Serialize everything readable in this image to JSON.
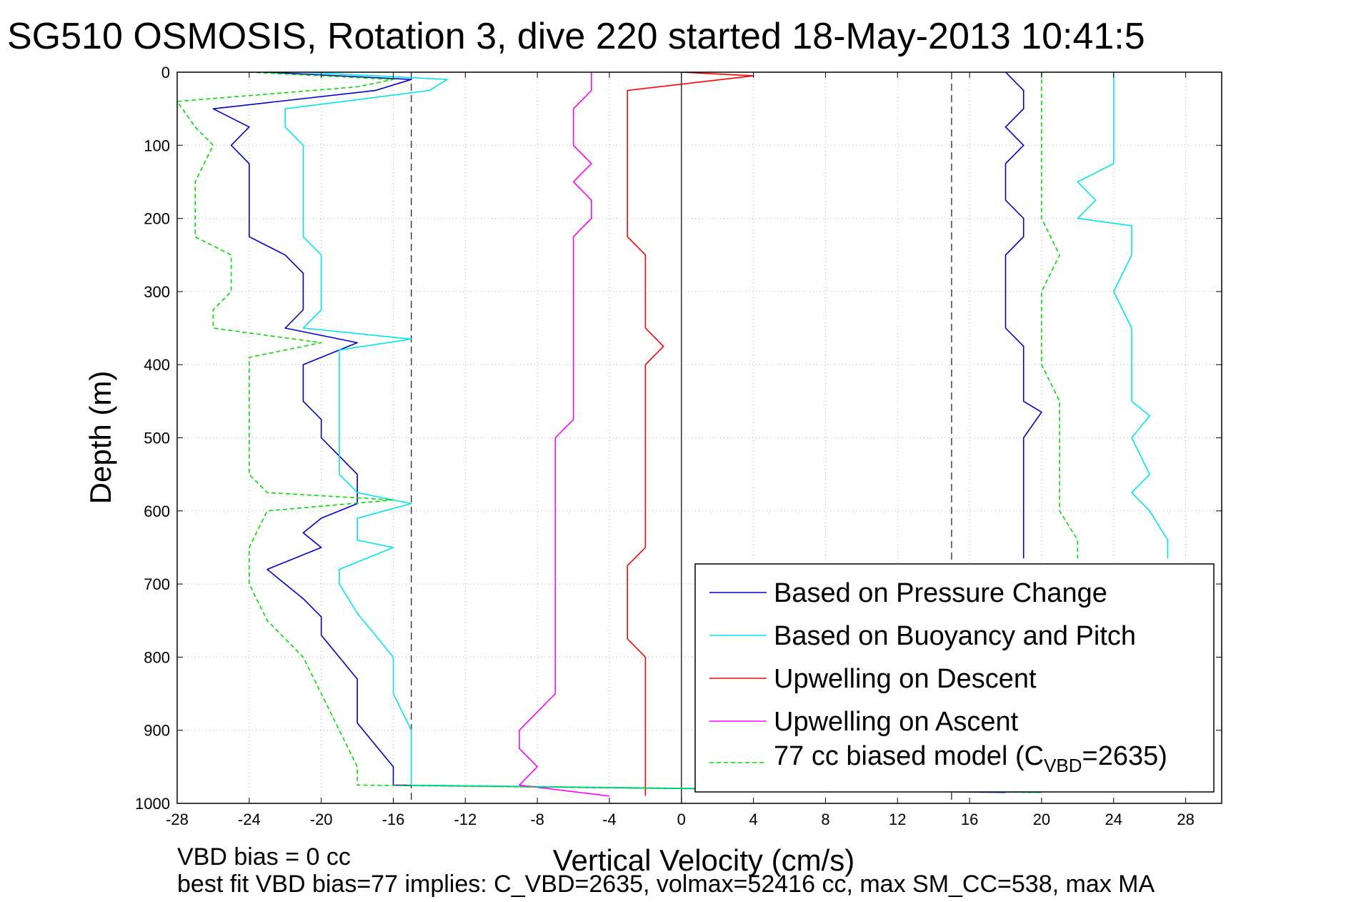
{
  "chart_data": {
    "type": "line",
    "title": "SG510 OSMOSIS, Rotation 3, dive 220 started 18-May-2013 10:41:5",
    "xlabel": "Vertical Velocity (cm/s)",
    "ylabel": "Depth (m)",
    "xlim": [
      -28,
      30
    ],
    "ylim": [
      1000,
      0
    ],
    "y_reversed": true,
    "xticks": [
      -28,
      -24,
      -20,
      -16,
      -12,
      -8,
      -4,
      0,
      4,
      8,
      12,
      16,
      20,
      24,
      28
    ],
    "yticks": [
      0,
      100,
      200,
      300,
      400,
      500,
      600,
      700,
      800,
      900,
      1000
    ],
    "grid": true,
    "legend_position": "bottom-right",
    "reference_lines": {
      "vertical_solid": [
        0
      ],
      "vertical_dashed": [
        -15,
        15
      ]
    },
    "notes": [
      "VBD bias = 0 cc",
      "best fit VBD bias=77 implies: C_VBD=2635, volmax=52416 cc, max SM_CC=538, max MA"
    ],
    "series": [
      {
        "name": "Based on Pressure Change",
        "color": "#0000cc",
        "style": "solid",
        "points": [
          [
            -23,
            0
          ],
          [
            -15,
            10
          ],
          [
            -17,
            25
          ],
          [
            -26,
            50
          ],
          [
            -24,
            75
          ],
          [
            -25,
            100
          ],
          [
            -24,
            125
          ],
          [
            -24,
            150
          ],
          [
            -24,
            175
          ],
          [
            -24,
            200
          ],
          [
            -24,
            225
          ],
          [
            -22,
            250
          ],
          [
            -21,
            275
          ],
          [
            -21,
            300
          ],
          [
            -21,
            325
          ],
          [
            -22,
            350
          ],
          [
            -18,
            370
          ],
          [
            -21,
            400
          ],
          [
            -21,
            425
          ],
          [
            -21,
            450
          ],
          [
            -20,
            475
          ],
          [
            -20,
            500
          ],
          [
            -19,
            525
          ],
          [
            -18,
            550
          ],
          [
            -18,
            575
          ],
          [
            -18,
            590
          ],
          [
            -20,
            610
          ],
          [
            -21,
            630
          ],
          [
            -20,
            650
          ],
          [
            -23,
            680
          ],
          [
            -22,
            700
          ],
          [
            -21,
            720
          ],
          [
            -20,
            745
          ],
          [
            -20,
            770
          ],
          [
            -19,
            800
          ],
          [
            -18,
            830
          ],
          [
            -18,
            860
          ],
          [
            -18,
            890
          ],
          [
            -17,
            920
          ],
          [
            -16,
            950
          ],
          [
            -16,
            975
          ],
          [
            18,
            985
          ]
        ],
        "ascent_points": [
          [
            18,
            0
          ],
          [
            19,
            25
          ],
          [
            19,
            50
          ],
          [
            18,
            75
          ],
          [
            19,
            100
          ],
          [
            18,
            125
          ],
          [
            18,
            150
          ],
          [
            18,
            175
          ],
          [
            19,
            200
          ],
          [
            19,
            225
          ],
          [
            18,
            250
          ],
          [
            18,
            275
          ],
          [
            18,
            300
          ],
          [
            18,
            325
          ],
          [
            18,
            350
          ],
          [
            19,
            375
          ],
          [
            19,
            400
          ],
          [
            19,
            425
          ],
          [
            19,
            450
          ],
          [
            20,
            465
          ],
          [
            19,
            500
          ],
          [
            19,
            550
          ],
          [
            19,
            600
          ],
          [
            19,
            650
          ],
          [
            19,
            665
          ]
        ]
      },
      {
        "name": "Based on Buoyancy and Pitch",
        "color": "#00e5ee",
        "style": "solid",
        "points": [
          [
            -21,
            0
          ],
          [
            -13,
            10
          ],
          [
            -14,
            25
          ],
          [
            -22,
            50
          ],
          [
            -22,
            75
          ],
          [
            -21,
            100
          ],
          [
            -21,
            125
          ],
          [
            -21,
            150
          ],
          [
            -21,
            175
          ],
          [
            -21,
            200
          ],
          [
            -21,
            225
          ],
          [
            -20,
            250
          ],
          [
            -20,
            275
          ],
          [
            -20,
            300
          ],
          [
            -20,
            325
          ],
          [
            -21,
            350
          ],
          [
            -15,
            365
          ],
          [
            -19,
            380
          ],
          [
            -19,
            400
          ],
          [
            -19,
            450
          ],
          [
            -19,
            500
          ],
          [
            -19,
            550
          ],
          [
            -18,
            575
          ],
          [
            -15,
            590
          ],
          [
            -18,
            610
          ],
          [
            -18,
            640
          ],
          [
            -16,
            650
          ],
          [
            -19,
            680
          ],
          [
            -19,
            700
          ],
          [
            -18,
            740
          ],
          [
            -17,
            770
          ],
          [
            -16,
            800
          ],
          [
            -16,
            850
          ],
          [
            -15,
            900
          ],
          [
            -15,
            950
          ],
          [
            -15,
            975
          ],
          [
            20,
            985
          ]
        ],
        "ascent_points": [
          [
            24,
            0
          ],
          [
            24,
            25
          ],
          [
            24,
            50
          ],
          [
            24,
            75
          ],
          [
            24,
            100
          ],
          [
            24,
            125
          ],
          [
            22,
            150
          ],
          [
            23,
            175
          ],
          [
            22,
            200
          ],
          [
            25,
            210
          ],
          [
            25,
            250
          ],
          [
            24,
            300
          ],
          [
            25,
            350
          ],
          [
            25,
            400
          ],
          [
            25,
            450
          ],
          [
            26,
            470
          ],
          [
            25,
            500
          ],
          [
            26,
            550
          ],
          [
            25,
            575
          ],
          [
            26,
            600
          ],
          [
            27,
            640
          ],
          [
            27,
            665
          ]
        ]
      },
      {
        "name": "Upwelling on Descent",
        "color": "#ff0000",
        "style": "solid",
        "points": [
          [
            0,
            0
          ],
          [
            4,
            5
          ],
          [
            -3,
            25
          ],
          [
            -3,
            50
          ],
          [
            -3,
            75
          ],
          [
            -3,
            100
          ],
          [
            -3,
            125
          ],
          [
            -3,
            150
          ],
          [
            -3,
            175
          ],
          [
            -3,
            200
          ],
          [
            -3,
            225
          ],
          [
            -2,
            250
          ],
          [
            -2,
            275
          ],
          [
            -2,
            300
          ],
          [
            -2,
            325
          ],
          [
            -2,
            350
          ],
          [
            -1,
            375
          ],
          [
            -2,
            400
          ],
          [
            -2,
            425
          ],
          [
            -2,
            450
          ],
          [
            -2,
            475
          ],
          [
            -2,
            500
          ],
          [
            -2,
            550
          ],
          [
            -2,
            600
          ],
          [
            -2,
            625
          ],
          [
            -2,
            650
          ],
          [
            -3,
            675
          ],
          [
            -3,
            700
          ],
          [
            -3,
            725
          ],
          [
            -3,
            750
          ],
          [
            -3,
            775
          ],
          [
            -2,
            800
          ],
          [
            -2,
            850
          ],
          [
            -2,
            900
          ],
          [
            -2,
            950
          ],
          [
            -2,
            975
          ],
          [
            -2,
            990
          ]
        ]
      },
      {
        "name": "Upwelling on Ascent",
        "color": "#ff00ff",
        "style": "solid",
        "points": [
          [
            -5,
            0
          ],
          [
            -5,
            25
          ],
          [
            -6,
            50
          ],
          [
            -6,
            75
          ],
          [
            -6,
            100
          ],
          [
            -5,
            125
          ],
          [
            -6,
            150
          ],
          [
            -5,
            175
          ],
          [
            -5,
            200
          ],
          [
            -6,
            225
          ],
          [
            -6,
            250
          ],
          [
            -6,
            275
          ],
          [
            -6,
            300
          ],
          [
            -6,
            325
          ],
          [
            -6,
            350
          ],
          [
            -6,
            375
          ],
          [
            -6,
            400
          ],
          [
            -6,
            425
          ],
          [
            -6,
            450
          ],
          [
            -6,
            475
          ],
          [
            -7,
            500
          ],
          [
            -7,
            525
          ],
          [
            -7,
            550
          ],
          [
            -7,
            575
          ],
          [
            -7,
            600
          ],
          [
            -7,
            625
          ],
          [
            -7,
            650
          ],
          [
            -7,
            675
          ],
          [
            -7,
            700
          ],
          [
            -7,
            725
          ],
          [
            -7,
            750
          ],
          [
            -7,
            775
          ],
          [
            -7,
            800
          ],
          [
            -7,
            825
          ],
          [
            -7,
            850
          ],
          [
            -8,
            875
          ],
          [
            -9,
            900
          ],
          [
            -9,
            925
          ],
          [
            -8,
            950
          ],
          [
            -9,
            975
          ],
          [
            -4,
            990
          ]
        ]
      },
      {
        "name": "77 cc biased model",
        "color": "#00dd00",
        "style": "dashed",
        "points": [
          [
            -24,
            0
          ],
          [
            -16,
            10
          ],
          [
            -18,
            20
          ],
          [
            -28,
            40
          ],
          [
            -27,
            75
          ],
          [
            -26,
            100
          ],
          [
            -27,
            150
          ],
          [
            -27,
            200
          ],
          [
            -27,
            225
          ],
          [
            -25,
            250
          ],
          [
            -25,
            275
          ],
          [
            -25,
            300
          ],
          [
            -26,
            325
          ],
          [
            -26,
            350
          ],
          [
            -20,
            370
          ],
          [
            -24,
            390
          ],
          [
            -24,
            450
          ],
          [
            -24,
            500
          ],
          [
            -24,
            550
          ],
          [
            -23,
            575
          ],
          [
            -16,
            585
          ],
          [
            -23,
            600
          ],
          [
            -24,
            650
          ],
          [
            -24,
            700
          ],
          [
            -23,
            750
          ],
          [
            -21,
            800
          ],
          [
            -20,
            850
          ],
          [
            -19,
            900
          ],
          [
            -18,
            950
          ],
          [
            -18,
            975
          ],
          [
            20,
            985
          ]
        ],
        "ascent_points": [
          [
            20,
            0
          ],
          [
            20,
            50
          ],
          [
            20,
            100
          ],
          [
            20,
            150
          ],
          [
            20,
            200
          ],
          [
            21,
            250
          ],
          [
            20,
            300
          ],
          [
            20,
            350
          ],
          [
            20,
            400
          ],
          [
            21,
            450
          ],
          [
            21,
            500
          ],
          [
            21,
            550
          ],
          [
            21,
            600
          ],
          [
            22,
            640
          ],
          [
            22,
            665
          ]
        ]
      }
    ]
  },
  "legend": {
    "items": [
      {
        "label": "Based on Pressure Change",
        "color": "#0000cc",
        "dashed": false
      },
      {
        "label": "Based on Buoyancy and Pitch",
        "color": "#00e5ee",
        "dashed": false
      },
      {
        "label": "Upwelling on Descent",
        "color": "#ff0000",
        "dashed": false
      },
      {
        "label": "Upwelling on Ascent",
        "color": "#ff00ff",
        "dashed": false
      }
    ],
    "model_item": {
      "color": "#00dd00",
      "prefix": "77 cc biased model (C",
      "subscript": "VBD",
      "suffix": "=2635)"
    }
  },
  "footer": {
    "line1": "VBD bias = 0 cc",
    "line2": "best fit VBD bias=77 implies: C_VBD=2635, volmax=52416 cc, max SM_CC=538, max MA"
  }
}
